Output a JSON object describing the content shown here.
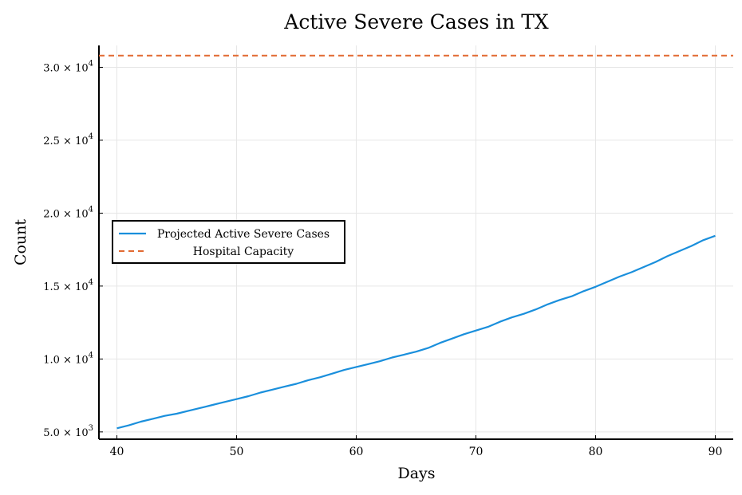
{
  "chart_data": {
    "type": "line",
    "title": "Active Severe Cases in TX",
    "xlabel": "Days",
    "ylabel": "Count",
    "xlim": [
      38.5,
      91.5
    ],
    "ylim": [
      4500,
      31500
    ],
    "grid": true,
    "legend_position": "middle-left",
    "x_ticks": [
      {
        "value": 40,
        "label": "40"
      },
      {
        "value": 50,
        "label": "50"
      },
      {
        "value": 60,
        "label": "60"
      },
      {
        "value": 70,
        "label": "70"
      },
      {
        "value": 80,
        "label": "80"
      },
      {
        "value": 90,
        "label": "90"
      }
    ],
    "y_ticks": [
      {
        "value": 5000,
        "mantissa": "5.0",
        "exponent": "3"
      },
      {
        "value": 10000,
        "mantissa": "1.0",
        "exponent": "4"
      },
      {
        "value": 15000,
        "mantissa": "1.5",
        "exponent": "4"
      },
      {
        "value": 20000,
        "mantissa": "2.0",
        "exponent": "4"
      },
      {
        "value": 25000,
        "mantissa": "2.5",
        "exponent": "4"
      },
      {
        "value": 30000,
        "mantissa": "3.0",
        "exponent": "4"
      }
    ],
    "series": [
      {
        "name": "Projected Active Severe Cases",
        "color": "#1a8fdc",
        "dash": "solid",
        "x": [
          40,
          41,
          42,
          43,
          44,
          45,
          46,
          47,
          48,
          49,
          50,
          51,
          52,
          53,
          54,
          55,
          56,
          57,
          58,
          59,
          60,
          61,
          62,
          63,
          64,
          65,
          66,
          67,
          68,
          69,
          70,
          71,
          72,
          73,
          74,
          75,
          76,
          77,
          78,
          79,
          80,
          81,
          82,
          83,
          84,
          85,
          86,
          87,
          88,
          89,
          90
        ],
        "y": [
          5250,
          5450,
          5700,
          5900,
          6100,
          6250,
          6450,
          6650,
          6850,
          7050,
          7250,
          7450,
          7700,
          7900,
          8100,
          8300,
          8550,
          8750,
          9000,
          9250,
          9450,
          9650,
          9850,
          10100,
          10300,
          10500,
          10750,
          11100,
          11400,
          11700,
          11950,
          12200,
          12550,
          12850,
          13100,
          13400,
          13750,
          14050,
          14300,
          14650,
          14950,
          15300,
          15650,
          15950,
          16300,
          16650,
          17050,
          17400,
          17750,
          18150,
          18450
        ]
      },
      {
        "name": "Hospital Capacity",
        "color": "#e26a32",
        "dash": "dashed",
        "x": [
          38.5,
          91.5
        ],
        "y": [
          30800,
          30800
        ]
      }
    ]
  }
}
